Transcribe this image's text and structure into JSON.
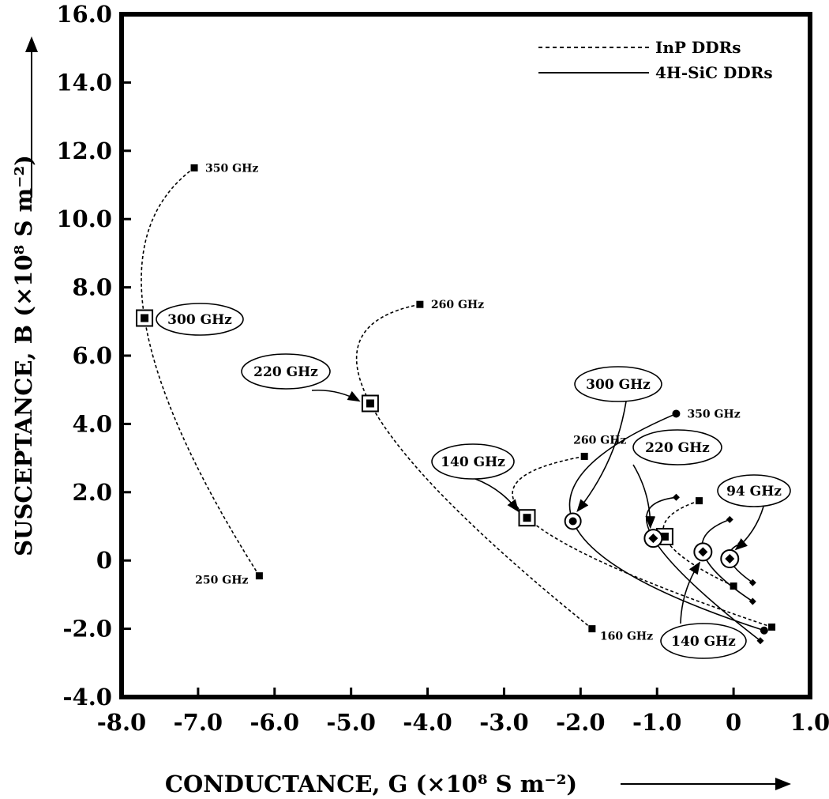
{
  "chart_data": {
    "type": "line",
    "xlabel": "CONDUCTANCE, G (×10⁸ S m⁻²)",
    "ylabel": "SUSCEPTANCE, B (×10⁸ S m⁻²)",
    "xlim": [
      -8.0,
      1.0
    ],
    "ylim": [
      -4.0,
      16.0
    ],
    "x_ticks": [
      "-8.0",
      "-7.0",
      "-6.0",
      "-5.0",
      "-4.0",
      "-3.0",
      "-2.0",
      "-1.0",
      "0",
      "1.0"
    ],
    "y_ticks": [
      "-4.0",
      "-2.0",
      "0",
      "2.0",
      "4.0",
      "6.0",
      "8.0",
      "10.0",
      "12.0",
      "14.0",
      "16.0"
    ],
    "grid": false,
    "legend": {
      "placement": "top-right",
      "entries": [
        {
          "name": "InP DDRs",
          "style": "dashed"
        },
        {
          "name": "4H-SiC DDRs",
          "style": "solid"
        }
      ]
    },
    "series": [
      {
        "group": "InP DDRs",
        "style": "dashed",
        "marker": "square",
        "x": [
          -7.05,
          -7.7,
          -6.2
        ],
        "y": [
          11.5,
          7.1,
          -0.45
        ],
        "labels": [
          "350 GHz",
          "",
          "250 GHz"
        ]
      },
      {
        "group": "InP DDRs",
        "style": "dashed",
        "marker": "square",
        "x": [
          -4.1,
          -4.75,
          -1.85
        ],
        "y": [
          7.5,
          4.6,
          -2.0
        ],
        "labels": [
          "260 GHz",
          "",
          "160 GHz"
        ]
      },
      {
        "group": "InP DDRs",
        "style": "dashed",
        "marker": "square",
        "x": [
          -1.95,
          -2.7,
          0.5
        ],
        "y": [
          3.05,
          1.25,
          -1.95
        ],
        "labels": [
          "260 GHz",
          "",
          ""
        ]
      },
      {
        "group": "InP DDRs",
        "style": "dashed",
        "marker": "square",
        "x": [
          -0.45,
          -0.9,
          0.0
        ],
        "y": [
          1.75,
          0.7,
          -0.75
        ],
        "labels": [
          "",
          "",
          ""
        ]
      },
      {
        "group": "4H-SiC DDRs",
        "style": "solid",
        "marker": "circle",
        "x": [
          -0.75,
          -2.1,
          0.4
        ],
        "y": [
          4.3,
          1.15,
          -2.05
        ],
        "labels": [
          "350 GHz",
          "",
          ""
        ]
      },
      {
        "group": "4H-SiC DDRs",
        "style": "solid",
        "marker": "diamond",
        "x": [
          -0.75,
          -1.05,
          0.35
        ],
        "y": [
          1.85,
          0.65,
          -2.35
        ],
        "labels": [
          "",
          "",
          ""
        ]
      },
      {
        "group": "4H-SiC DDRs",
        "style": "solid",
        "marker": "diamond",
        "x": [
          -0.05,
          -0.4,
          0.25
        ],
        "y": [
          1.2,
          0.25,
          -1.2
        ],
        "labels": [
          "",
          "",
          ""
        ]
      },
      {
        "group": "4H-SiC DDRs",
        "style": "solid",
        "marker": "diamond",
        "x": [
          0.1,
          -0.05,
          0.25
        ],
        "y": [
          0.5,
          0.05,
          -0.65
        ],
        "labels": [
          "",
          "",
          ""
        ]
      }
    ],
    "annotations": [
      {
        "text": "300 GHz",
        "points_to": [
          -7.7,
          7.1
        ]
      },
      {
        "text": "220 GHz",
        "points_to": [
          -4.75,
          4.6
        ]
      },
      {
        "text": "140 GHz",
        "points_to": [
          -2.7,
          1.25
        ]
      },
      {
        "text": "300 GHz",
        "points_to": [
          -2.1,
          1.15
        ]
      },
      {
        "text": "220 GHz",
        "points_to": [
          -1.05,
          0.65
        ]
      },
      {
        "text": "94 GHz",
        "points_to": [
          -0.05,
          0.05
        ]
      },
      {
        "text": "140 GHz",
        "points_to": [
          -0.4,
          0.25
        ]
      }
    ]
  }
}
